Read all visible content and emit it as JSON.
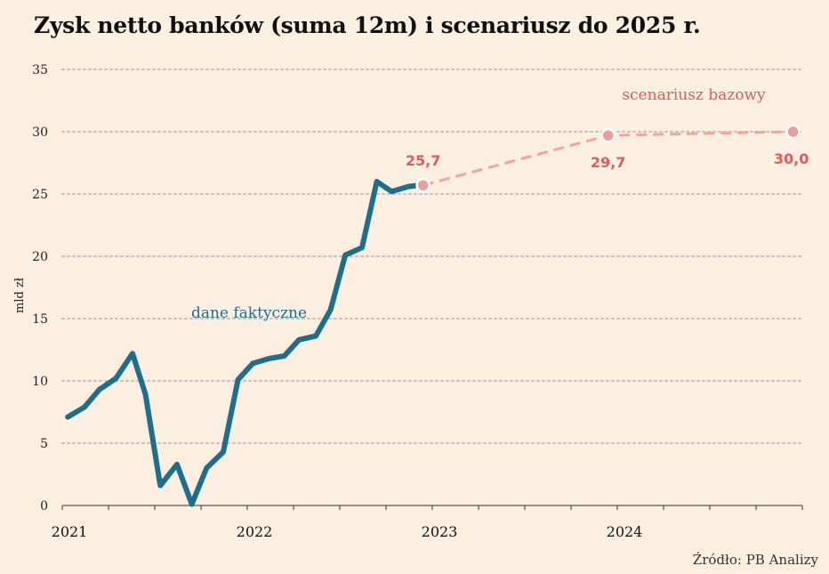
{
  "chart_data": {
    "type": "line",
    "title": "Zysk netto banków (suma 12m) i scenariusz do 2025 r.",
    "ylabel": "mld zł",
    "ylim": [
      0,
      35
    ],
    "yticks": [
      0,
      5,
      10,
      15,
      20,
      25,
      30,
      35
    ],
    "xlim": [
      2021,
      2025
    ],
    "xticks": [
      2021,
      2022,
      2023,
      2024
    ],
    "grid": true,
    "series": [
      {
        "name": "dane faktyczne",
        "color": "#1f6e8c",
        "x": [
          2021.03,
          2021.12,
          2021.2,
          2021.29,
          2021.38,
          2021.45,
          2021.53,
          2021.62,
          2021.7,
          2021.78,
          2021.87,
          2021.95,
          2022.03,
          2022.12,
          2022.2,
          2022.28,
          2022.37,
          2022.45,
          2022.53,
          2022.62,
          2022.7,
          2022.78,
          2022.87,
          2022.93
        ],
        "y": [
          7.1,
          7.9,
          9.3,
          10.2,
          12.2,
          8.9,
          1.6,
          3.3,
          0.1,
          3.0,
          4.3,
          10.1,
          11.4,
          11.8,
          12.0,
          13.3,
          13.6,
          15.7,
          20.1,
          20.7,
          26.0,
          25.2,
          25.6,
          25.7
        ]
      },
      {
        "name": "scenariusz bazowy",
        "color": "#f0a4a4",
        "x": [
          2022.95,
          2023.95,
          2024.95
        ],
        "y": [
          25.7,
          29.7,
          30.0
        ]
      }
    ],
    "annotations": [
      {
        "text": "25,7",
        "x": 2022.95,
        "y": 25.7
      },
      {
        "text": "29,7",
        "x": 2023.95,
        "y": 29.7
      },
      {
        "text": "30,0",
        "x": 2024.95,
        "y": 30.0
      }
    ],
    "label_color": "#e05b5b",
    "source": "Źródło: PB Analizy"
  }
}
